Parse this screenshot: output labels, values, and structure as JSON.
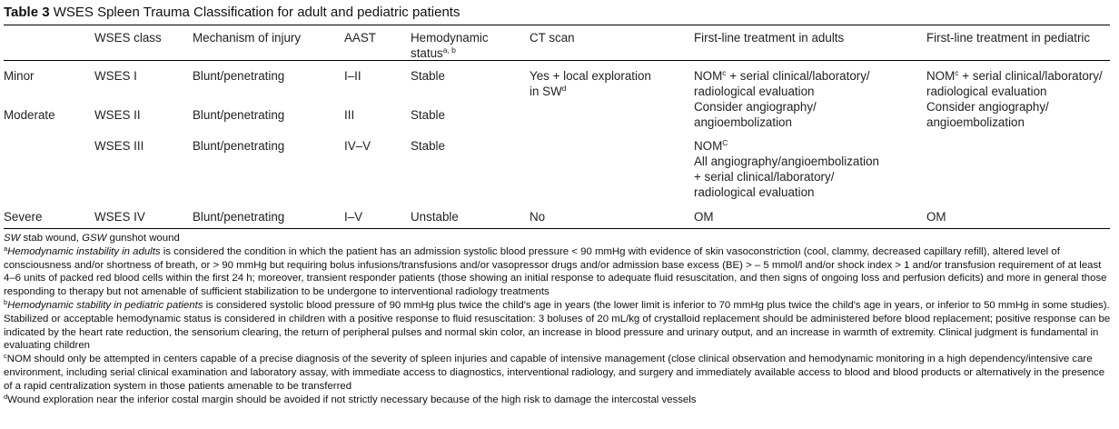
{
  "caption": {
    "label": "Table 3",
    "title": "WSES Spleen Trauma Classification for adult and pediatric patients"
  },
  "headers": {
    "wses_class": "WSES class",
    "mechanism": "Mechanism of injury",
    "aast": "AAST",
    "hemodynamic": "Hemodynamic",
    "hemodynamic_line2": "status",
    "hemodynamic_sup": "a, b",
    "ct_scan": "CT scan",
    "adults": "First-line treatment in adults",
    "pediatric": "First-line treatment in pediatric"
  },
  "rows": [
    {
      "group": "Minor",
      "wses": "WSES I",
      "mechanism": "Blunt/penetrating",
      "aast": "I–II",
      "status": "Stable",
      "ct_line1": "Yes + local exploration",
      "ct_line2": "in SW",
      "ct_sup": "d",
      "adult_nom": "NOM",
      "adult_nom_sup": "c",
      "adult_line1_rest": " + serial clinical/laboratory/",
      "adult_line2": "radiological evaluation",
      "ped_nom": "NOM",
      "ped_nom_sup": "c",
      "ped_line1_rest": " + serial clinical/laboratory/",
      "ped_line2": "radiological evaluation"
    },
    {
      "group": "Moderate",
      "wses": "WSES II",
      "mechanism": "Blunt/penetrating",
      "aast": "III",
      "status": "Stable",
      "adult_line1": "Consider angiography/",
      "adult_line2": "angioembolization",
      "ped_line1": "Consider angiography/",
      "ped_line2": "angioembolization"
    },
    {
      "wses": "WSES III",
      "mechanism": "Blunt/penetrating",
      "aast": "IV–V",
      "status": "Stable",
      "adult_nom": "NOM",
      "adult_nom_sup": "C",
      "adult_line2": "All angiography/angioembolization",
      "adult_line3": "+ serial clinical/laboratory/",
      "adult_line4": "radiological evaluation"
    },
    {
      "group": "Severe",
      "wses": "WSES IV",
      "mechanism": "Blunt/penetrating",
      "aast": "I–V",
      "status": "Unstable",
      "ct": "No",
      "adult": "OM",
      "ped": "OM"
    }
  ],
  "footnotes": {
    "abbr_sw": "SW",
    "abbr_sw_text": " stab wound, ",
    "abbr_gsw": "GSW",
    "abbr_gsw_text": " gunshot wound",
    "a_mark": "a",
    "a_italic": "Hemodynamic instability in adults",
    "a_text": " is considered the condition in which the patient has an admission systolic blood pressure < 90 mmHg with evidence of skin vasoconstriction (cool, clammy, decreased capillary refill), altered level of consciousness and/or shortness of breath, or > 90 mmHg but requiring bolus infusions/transfusions and/or vasopressor drugs and/or admission base excess (BE) > – 5 mmol/l and/or shock index > 1 and/or transfusion requirement of at least 4–6 units of packed red blood cells within the first 24 h; moreover, transient responder patients (those showing an initial response to adequate fluid resuscitation, and then signs of ongoing loss and perfusion deficits) and more in general those responding to therapy but not amenable of sufficient stabilization to be undergone to interventional radiology treatments",
    "b_mark": "b",
    "b_italic": "Hemodynamic stability in pediatric patients",
    "b_text": " is considered systolic blood pressure of 90 mmHg plus twice the child's age in years (the lower limit is inferior to 70 mmHg plus twice the child's age in years, or inferior to 50 mmHg in some studies). Stabilized or acceptable hemodynamic status is considered in children with a positive response to fluid resuscitation: 3 boluses of 20 mL/kg of crystalloid replacement should be administered before blood replacement; positive response can be indicated by the heart rate reduction, the sensorium clearing, the return of peripheral pulses and normal skin color, an increase in blood pressure and urinary output, and an increase in warmth of extremity. Clinical judgment is fundamental in evaluating children",
    "c_mark": "c",
    "c_text": "NOM should only be attempted in centers capable of a precise diagnosis of the severity of spleen injuries and capable of intensive management (close clinical observation and hemodynamic monitoring in a high dependency/intensive care environment, including serial clinical examination and laboratory assay, with immediate access to diagnostics, interventional radiology, and surgery and immediately available access to blood and blood products or alternatively in the presence of a rapid centralization system in those patients amenable to be transferred",
    "d_mark": "d",
    "d_text": "Wound exploration near the inferior costal margin should be avoided if not strictly necessary because of the high risk to damage the intercostal vessels"
  }
}
